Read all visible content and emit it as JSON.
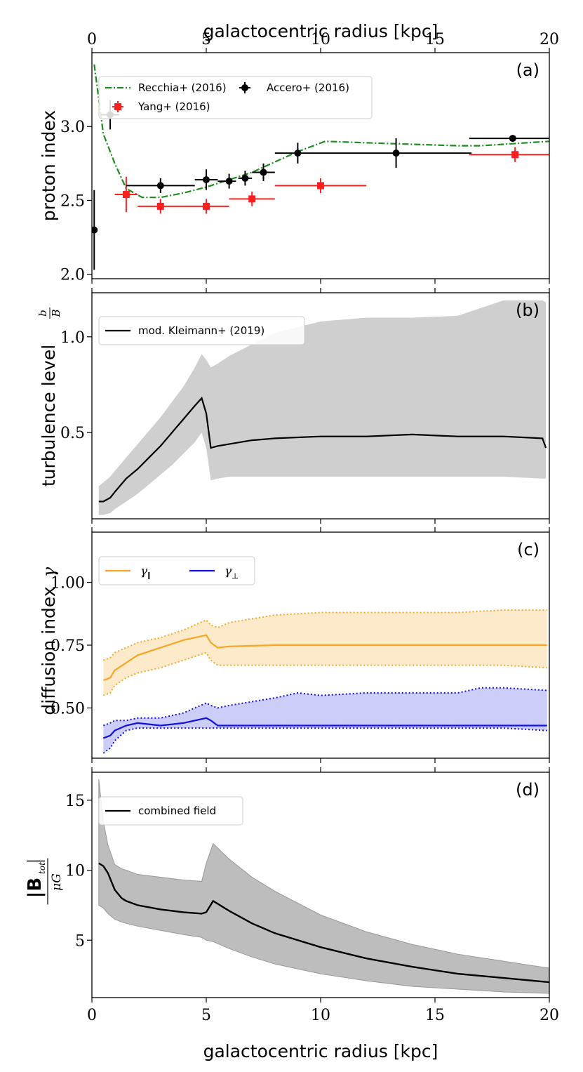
{
  "figure": {
    "top_xlabel": "galactocentric radius [kpc]",
    "bottom_xlabel": "galactocentric radius [kpc]",
    "xlim": [
      0,
      20
    ],
    "xticks": [
      "0",
      "5",
      "10",
      "15",
      "20"
    ],
    "colors": {
      "recchia": "#1e8c1e",
      "yang": "#ff1f1f",
      "accero": "#000000",
      "band_gray": "#cfcfcf",
      "band_gray_dark": "#bdbdbd",
      "gamma_par": "#f5a623",
      "gamma_par_fill": "#fde8c4",
      "gamma_perp": "#1010e0",
      "gamma_perp_fill": "#c8c8f8"
    }
  },
  "chart_data": [
    {
      "id": "a",
      "type": "scatter",
      "tag": "(a)",
      "ylabel": "proton index",
      "ylim": [
        1.97,
        3.5
      ],
      "yticks": [
        2.0,
        2.5,
        3.0
      ],
      "ytick_labels": [
        "2.0",
        "2.5",
        "3.0"
      ],
      "series": [
        {
          "name": "Recchia+ (2016)",
          "kind": "line",
          "style": "dashdot",
          "x": [
            0.1,
            0.5,
            1.0,
            1.5,
            2.2,
            3.0,
            4.0,
            5.0,
            6.0,
            7.0,
            8.0,
            9.0,
            10.2,
            12.0,
            14.0,
            16.0,
            17.0,
            18.0,
            20.0
          ],
          "y": [
            3.42,
            2.95,
            2.75,
            2.58,
            2.52,
            2.52,
            2.55,
            2.59,
            2.64,
            2.69,
            2.76,
            2.83,
            2.9,
            2.89,
            2.88,
            2.87,
            2.87,
            2.88,
            2.9
          ]
        },
        {
          "name": "Yang+ (2016)",
          "kind": "errorbar",
          "marker": "square",
          "x": [
            1.5,
            3.0,
            5.0,
            7.0,
            10.0,
            18.5
          ],
          "y": [
            2.54,
            2.46,
            2.46,
            2.51,
            2.6,
            2.81
          ],
          "xerr_lo": [
            0.5,
            1.0,
            1.0,
            1.0,
            2.0,
            2.0
          ],
          "xerr_hi": [
            0.5,
            1.0,
            1.0,
            1.0,
            2.0,
            1.5
          ],
          "yerr": [
            0.12,
            0.05,
            0.05,
            0.05,
            0.05,
            0.05
          ]
        },
        {
          "name": "Accero+ (2016)",
          "kind": "errorbar",
          "marker": "circle",
          "x": [
            0.1,
            0.8,
            3.0,
            5.0,
            6.0,
            6.7,
            7.5,
            9.0,
            13.3,
            18.4
          ],
          "y": [
            2.3,
            3.08,
            2.6,
            2.64,
            2.63,
            2.65,
            2.69,
            2.82,
            2.82,
            2.92
          ],
          "xerr_lo": [
            0.1,
            0.4,
            1.5,
            0.5,
            0.5,
            0.3,
            0.5,
            1.0,
            3.3,
            1.9
          ],
          "xerr_hi": [
            0.1,
            0.4,
            1.5,
            0.5,
            0.3,
            0.3,
            0.5,
            1.0,
            3.3,
            1.6
          ],
          "yerr": [
            0.27,
            0.1,
            0.05,
            0.07,
            0.05,
            0.05,
            0.06,
            0.07,
            0.1,
            0.0
          ]
        }
      ]
    },
    {
      "id": "b",
      "type": "line",
      "tag": "(b)",
      "ylabel": "turbulence level",
      "ylabel_frac_num": "b",
      "ylabel_frac_den": "B",
      "ylim": [
        0.05,
        1.23
      ],
      "yticks": [
        0.5,
        1.0
      ],
      "ytick_labels": [
        "0.5",
        "1.0"
      ],
      "legend": "mod. Kleimann+ (2019)",
      "x": [
        0.3,
        0.5,
        0.8,
        1.0,
        1.5,
        2.0,
        2.5,
        3.0,
        3.5,
        4.0,
        4.5,
        4.8,
        5.0,
        5.2,
        5.5,
        6.0,
        7.0,
        8.0,
        10.0,
        12.0,
        14.0,
        16.0,
        18.0,
        19.7,
        19.85
      ],
      "mean": [
        0.14,
        0.14,
        0.16,
        0.19,
        0.26,
        0.31,
        0.37,
        0.43,
        0.5,
        0.57,
        0.64,
        0.68,
        0.6,
        0.42,
        0.43,
        0.44,
        0.46,
        0.47,
        0.48,
        0.48,
        0.49,
        0.48,
        0.48,
        0.47,
        0.42
      ],
      "upper": [
        0.22,
        0.24,
        0.27,
        0.3,
        0.37,
        0.44,
        0.51,
        0.58,
        0.66,
        0.74,
        0.84,
        0.91,
        0.88,
        0.84,
        0.86,
        0.9,
        0.96,
        1.02,
        1.08,
        1.1,
        1.1,
        1.11,
        1.19,
        1.19,
        1.18
      ],
      "lower": [
        0.07,
        0.07,
        0.08,
        0.1,
        0.14,
        0.18,
        0.23,
        0.28,
        0.33,
        0.39,
        0.45,
        0.5,
        0.42,
        0.25,
        0.26,
        0.27,
        0.27,
        0.27,
        0.27,
        0.27,
        0.27,
        0.27,
        0.27,
        0.26,
        0.26
      ]
    },
    {
      "id": "c",
      "type": "area",
      "tag": "(c)",
      "ylabel": "diffusion index",
      "ylabel_symbol": "γ",
      "ylim": [
        0.3,
        1.2
      ],
      "yticks": [
        0.5,
        0.75,
        1.0
      ],
      "ytick_labels": [
        "0.50",
        "0.75",
        "1.00"
      ],
      "series": [
        {
          "name": "γ∥",
          "label": "γ",
          "subscript": "∥",
          "x": [
            0.5,
            0.8,
            1.0,
            1.5,
            2.0,
            3.0,
            4.0,
            5.0,
            5.2,
            5.5,
            6.0,
            8.0,
            10.0,
            12.0,
            14.0,
            16.0,
            18.0,
            19.9
          ],
          "mean": [
            0.61,
            0.62,
            0.65,
            0.68,
            0.71,
            0.74,
            0.77,
            0.79,
            0.76,
            0.74,
            0.745,
            0.75,
            0.75,
            0.75,
            0.75,
            0.75,
            0.75,
            0.75
          ],
          "upper": [
            0.69,
            0.7,
            0.72,
            0.74,
            0.76,
            0.78,
            0.81,
            0.85,
            0.83,
            0.82,
            0.84,
            0.87,
            0.88,
            0.88,
            0.88,
            0.88,
            0.89,
            0.89
          ],
          "lower": [
            0.55,
            0.56,
            0.59,
            0.62,
            0.64,
            0.66,
            0.69,
            0.72,
            0.69,
            0.67,
            0.67,
            0.67,
            0.67,
            0.67,
            0.67,
            0.67,
            0.67,
            0.66
          ]
        },
        {
          "name": "γ⊥",
          "label": "γ",
          "subscript": "⊥",
          "x": [
            0.5,
            0.8,
            1.0,
            1.5,
            2.0,
            3.0,
            4.0,
            5.0,
            5.2,
            5.5,
            6.0,
            8.0,
            9.0,
            10.0,
            12.0,
            14.0,
            16.0,
            17.0,
            18.0,
            19.9
          ],
          "mean": [
            0.38,
            0.39,
            0.41,
            0.43,
            0.44,
            0.43,
            0.44,
            0.46,
            0.45,
            0.43,
            0.43,
            0.43,
            0.43,
            0.43,
            0.43,
            0.43,
            0.43,
            0.43,
            0.43,
            0.43
          ],
          "upper": [
            0.43,
            0.44,
            0.45,
            0.45,
            0.46,
            0.46,
            0.48,
            0.52,
            0.51,
            0.5,
            0.51,
            0.54,
            0.56,
            0.55,
            0.56,
            0.56,
            0.56,
            0.58,
            0.58,
            0.57
          ],
          "lower": [
            0.32,
            0.34,
            0.37,
            0.41,
            0.42,
            0.42,
            0.42,
            0.42,
            0.42,
            0.42,
            0.42,
            0.42,
            0.42,
            0.42,
            0.42,
            0.42,
            0.42,
            0.42,
            0.42,
            0.41
          ]
        }
      ]
    },
    {
      "id": "d",
      "type": "line",
      "tag": "(d)",
      "ylabel_top": "|B",
      "ylabel_sub": "tot",
      "ylabel_bottom": "μG",
      "ylim": [
        0.9,
        17.0
      ],
      "yticks": [
        5,
        10,
        15
      ],
      "ytick_labels": [
        "5",
        "10",
        "15"
      ],
      "legend": "combined field",
      "xticks": [
        "0",
        "5",
        "10",
        "15",
        "20"
      ],
      "x": [
        0.3,
        0.5,
        0.7,
        1.0,
        1.3,
        1.5,
        2.0,
        3.0,
        4.0,
        4.8,
        5.0,
        5.3,
        6.0,
        7.0,
        8.0,
        10.0,
        12.0,
        14.0,
        16.0,
        18.0,
        20.0
      ],
      "mean": [
        10.5,
        10.3,
        9.8,
        8.6,
        8.0,
        7.8,
        7.5,
        7.2,
        7.0,
        6.9,
        7.0,
        7.8,
        7.1,
        6.2,
        5.5,
        4.5,
        3.7,
        3.1,
        2.6,
        2.3,
        2.0
      ],
      "upper": [
        16.5,
        13.5,
        11.8,
        10.4,
        10.1,
        10.0,
        9.7,
        9.5,
        9.3,
        9.2,
        10.5,
        11.9,
        10.8,
        9.5,
        8.5,
        6.8,
        5.6,
        4.7,
        4.0,
        3.5,
        3.0
      ],
      "lower": [
        7.5,
        7.3,
        6.9,
        6.5,
        6.3,
        6.2,
        6.0,
        5.7,
        5.4,
        5.2,
        5.0,
        4.9,
        4.4,
        3.8,
        3.3,
        2.6,
        2.1,
        1.7,
        1.5,
        1.3,
        1.2
      ]
    }
  ]
}
